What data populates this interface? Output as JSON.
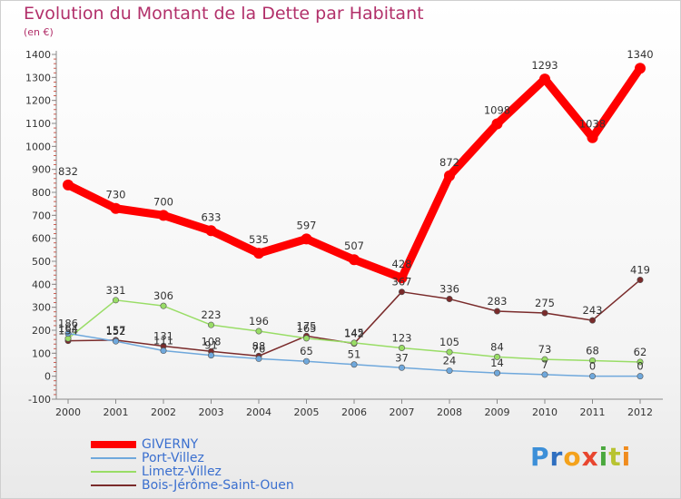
{
  "chart_data": {
    "type": "line",
    "title": "Evolution du Montant de la Dette par Habitant",
    "subtitle": "(en €)",
    "x": [
      "2000",
      "2001",
      "2002",
      "2003",
      "2004",
      "2005",
      "2006",
      "2007",
      "2008",
      "2009",
      "2010",
      "2011",
      "2012"
    ],
    "ylim": [
      -100,
      1400
    ],
    "yticks": [
      -100,
      0,
      100,
      200,
      300,
      400,
      500,
      600,
      700,
      800,
      900,
      1000,
      1100,
      1200,
      1300,
      1400
    ],
    "grid": false,
    "legend": "bottom-left",
    "series": [
      {
        "name": "GIVERNY",
        "color": "#ff0000",
        "values": [
          832,
          730,
          700,
          633,
          535,
          597,
          507,
          428,
          872,
          1098,
          1293,
          1038,
          1340
        ]
      },
      {
        "name": "Port-Villez",
        "color": "#6fa8dc",
        "values": [
          186,
          152,
          111,
          91,
          76,
          65,
          51,
          37,
          24,
          14,
          7,
          0,
          0
        ]
      },
      {
        "name": "Limetz-Villez",
        "color": "#99dd66",
        "values": [
          164,
          331,
          306,
          223,
          196,
          165,
          145,
          123,
          105,
          84,
          73,
          68,
          62
        ]
      },
      {
        "name": "Bois-Jérôme-Saint-Ouen",
        "color": "#7a2b2b",
        "values": [
          154,
          157,
          131,
          108,
          88,
          175,
          142,
          367,
          336,
          283,
          275,
          243,
          419
        ]
      }
    ]
  },
  "brand": {
    "letters": [
      "P",
      "r",
      "o",
      "x",
      "i",
      "t",
      "i"
    ],
    "colors": [
      "#3c8fd8",
      "#2f6fc0",
      "#f4a21c",
      "#e8462f",
      "#4aa83d",
      "#b8c331",
      "#f08c1e"
    ]
  }
}
